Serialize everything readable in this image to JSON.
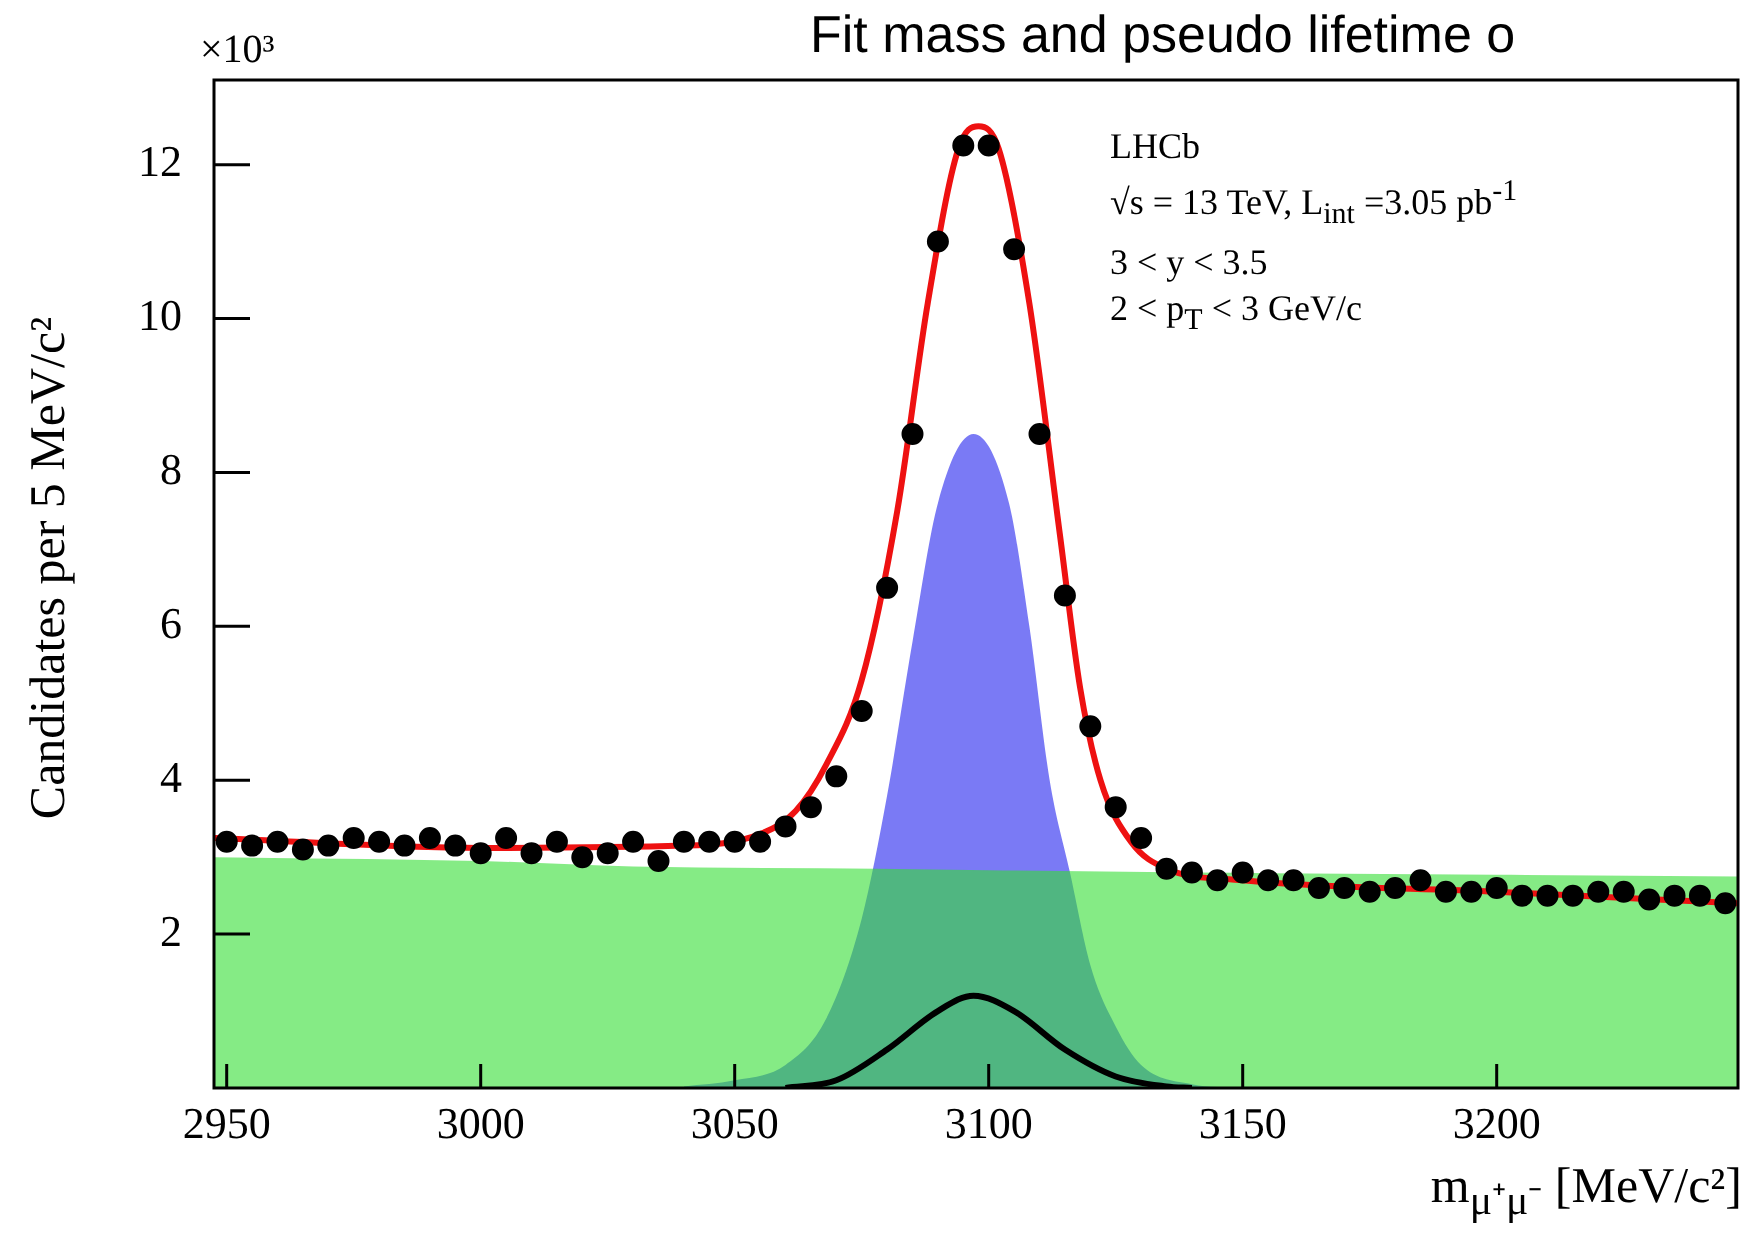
{
  "chart_data": {
    "type": "scatter",
    "title": "Fit mass and pseudo lifetime o",
    "xlabel": "m$_{μ⁺μ⁻}$ [MeV/c²]",
    "ylabel": "Candidates per 5 MeV/c²",
    "annotations": [
      "×10³",
      "LHCb",
      "√s = 13 TeV, L$_{int}$ =3.05 pb$^{-1}$",
      "3 < y < 3.5",
      "2 < p$_{T}$ < 3 GeV/c"
    ],
    "xlim": [
      2947.5,
      3247.5
    ],
    "xticks": [
      2950,
      3000,
      3050,
      3100,
      3150,
      3200
    ],
    "ylim": [
      0,
      13.1
    ],
    "yticks": [
      2,
      4,
      6,
      8,
      10,
      12
    ],
    "grid": false,
    "legend": false,
    "series": [
      {
        "type": "area",
        "color": "#33dd33",
        "x": [
          2947.5,
          3000,
          3030,
          3078,
          3100,
          3140,
          3200,
          3247.5
        ],
        "values": [
          3.0,
          2.95,
          2.88,
          2.85,
          2.83,
          2.8,
          2.77,
          2.75
        ]
      },
      {
        "type": "area",
        "color": "#2222ee",
        "x": [
          3040,
          3050,
          3060,
          3068,
          3075,
          3080,
          3085,
          3090,
          3097,
          3104,
          3108,
          3112,
          3116,
          3120,
          3125,
          3130,
          3140,
          3150
        ],
        "values": [
          0.02,
          0.1,
          0.3,
          0.9,
          2.2,
          3.8,
          5.8,
          7.6,
          8.5,
          7.6,
          6.0,
          4.0,
          2.8,
          1.6,
          0.8,
          0.3,
          0.05,
          0
        ]
      },
      {
        "type": "line",
        "color": "#000000",
        "x": [
          3060,
          3070,
          3080,
          3090,
          3097,
          3105,
          3115,
          3125,
          3135,
          3140
        ],
        "values": [
          0,
          0.1,
          0.5,
          1.0,
          1.2,
          1.0,
          0.5,
          0.15,
          0.02,
          0
        ]
      },
      {
        "type": "line",
        "color": "#ee1111",
        "x": [
          2947.5,
          3000,
          3040,
          3055,
          3062,
          3068,
          3075,
          3082,
          3088,
          3094,
          3098,
          3102,
          3108,
          3114,
          3118,
          3122,
          3128,
          3135,
          3150,
          3200,
          3247.5
        ],
        "values": [
          3.25,
          3.12,
          3.15,
          3.3,
          3.6,
          4.2,
          5.3,
          7.5,
          10.2,
          12.2,
          12.5,
          12.2,
          10.2,
          7.2,
          5.2,
          4.0,
          3.2,
          2.85,
          2.7,
          2.55,
          2.4
        ]
      },
      {
        "type": "scatter",
        "color": "#000000",
        "marker": "circle",
        "x": [
          2950,
          2955,
          2960,
          2965,
          2970,
          2975,
          2980,
          2985,
          2990,
          2995,
          3000,
          3005,
          3010,
          3015,
          3020,
          3025,
          3030,
          3035,
          3040,
          3045,
          3050,
          3055,
          3060,
          3065,
          3070,
          3075,
          3080,
          3085,
          3090,
          3095,
          3100,
          3105,
          3110,
          3115,
          3120,
          3125,
          3130,
          3135,
          3140,
          3145,
          3150,
          3155,
          3160,
          3165,
          3170,
          3175,
          3180,
          3185,
          3190,
          3195,
          3200,
          3205,
          3210,
          3215,
          3220,
          3225,
          3230,
          3235,
          3240,
          3245
        ],
        "values": [
          3.2,
          3.15,
          3.2,
          3.1,
          3.15,
          3.25,
          3.2,
          3.15,
          3.25,
          3.15,
          3.05,
          3.25,
          3.05,
          3.2,
          3.0,
          3.05,
          3.2,
          2.95,
          3.2,
          3.2,
          3.2,
          3.2,
          3.4,
          3.65,
          4.05,
          4.9,
          6.5,
          8.5,
          11.0,
          12.25,
          12.25,
          10.9,
          8.5,
          6.4,
          4.7,
          3.65,
          3.25,
          2.85,
          2.8,
          2.7,
          2.8,
          2.7,
          2.7,
          2.6,
          2.6,
          2.55,
          2.6,
          2.7,
          2.55,
          2.55,
          2.6,
          2.5,
          2.5,
          2.5,
          2.55,
          2.55,
          2.45,
          2.5,
          2.5,
          2.4
        ]
      }
    ]
  }
}
